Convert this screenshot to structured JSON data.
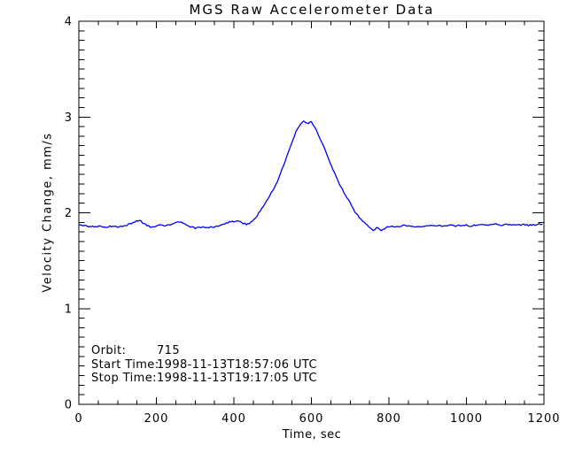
{
  "chart_data": {
    "type": "line",
    "title": "MGS Raw Accelerometer Data",
    "xlabel": "Time, sec",
    "ylabel": "Velocity Change, mm/s",
    "xlim": [
      0,
      1200
    ],
    "ylim": [
      0,
      4
    ],
    "x_major_ticks": [
      0,
      200,
      400,
      600,
      800,
      1000,
      1200
    ],
    "x_minor_step": 50,
    "y_major_ticks": [
      0,
      1,
      2,
      3,
      4
    ],
    "y_minor_step": 0.1,
    "grid": false,
    "legend": "none",
    "line_color": "#0000ff",
    "axis_color": "#000000",
    "background_color": "#ffffff",
    "noise_amplitude": 0.008,
    "noise_step_sec": 4,
    "series": [
      {
        "name": "velocity-change",
        "points": [
          [
            0,
            1.88
          ],
          [
            10,
            1.87
          ],
          [
            20,
            1.86
          ],
          [
            30,
            1.86
          ],
          [
            40,
            1.85
          ],
          [
            50,
            1.86
          ],
          [
            60,
            1.86
          ],
          [
            70,
            1.85
          ],
          [
            80,
            1.86
          ],
          [
            90,
            1.86
          ],
          [
            100,
            1.85
          ],
          [
            110,
            1.86
          ],
          [
            120,
            1.87
          ],
          [
            130,
            1.88
          ],
          [
            140,
            1.9
          ],
          [
            150,
            1.92
          ],
          [
            160,
            1.91
          ],
          [
            170,
            1.88
          ],
          [
            180,
            1.86
          ],
          [
            190,
            1.85
          ],
          [
            200,
            1.86
          ],
          [
            210,
            1.87
          ],
          [
            220,
            1.86
          ],
          [
            230,
            1.87
          ],
          [
            240,
            1.88
          ],
          [
            250,
            1.9
          ],
          [
            260,
            1.9
          ],
          [
            270,
            1.89
          ],
          [
            280,
            1.87
          ],
          [
            290,
            1.85
          ],
          [
            300,
            1.84
          ],
          [
            310,
            1.85
          ],
          [
            320,
            1.85
          ],
          [
            330,
            1.84
          ],
          [
            340,
            1.85
          ],
          [
            350,
            1.85
          ],
          [
            360,
            1.86
          ],
          [
            370,
            1.87
          ],
          [
            380,
            1.89
          ],
          [
            390,
            1.91
          ],
          [
            400,
            1.91
          ],
          [
            410,
            1.91
          ],
          [
            420,
            1.9
          ],
          [
            430,
            1.88
          ],
          [
            440,
            1.89
          ],
          [
            450,
            1.92
          ],
          [
            460,
            1.97
          ],
          [
            470,
            2.03
          ],
          [
            480,
            2.09
          ],
          [
            490,
            2.16
          ],
          [
            500,
            2.23
          ],
          [
            510,
            2.3
          ],
          [
            520,
            2.41
          ],
          [
            530,
            2.52
          ],
          [
            540,
            2.63
          ],
          [
            550,
            2.73
          ],
          [
            560,
            2.84
          ],
          [
            570,
            2.92
          ],
          [
            580,
            2.96
          ],
          [
            590,
            2.93
          ],
          [
            600,
            2.95
          ],
          [
            610,
            2.88
          ],
          [
            620,
            2.8
          ],
          [
            630,
            2.7
          ],
          [
            640,
            2.61
          ],
          [
            650,
            2.5
          ],
          [
            660,
            2.41
          ],
          [
            670,
            2.32
          ],
          [
            680,
            2.24
          ],
          [
            690,
            2.17
          ],
          [
            700,
            2.1
          ],
          [
            710,
            2.02
          ],
          [
            720,
            1.97
          ],
          [
            730,
            1.92
          ],
          [
            740,
            1.88
          ],
          [
            750,
            1.85
          ],
          [
            760,
            1.82
          ],
          [
            770,
            1.85
          ],
          [
            780,
            1.82
          ],
          [
            790,
            1.84
          ],
          [
            800,
            1.86
          ],
          [
            810,
            1.86
          ],
          [
            820,
            1.85
          ],
          [
            830,
            1.86
          ],
          [
            840,
            1.87
          ],
          [
            850,
            1.86
          ],
          [
            860,
            1.86
          ],
          [
            870,
            1.85
          ],
          [
            880,
            1.86
          ],
          [
            890,
            1.86
          ],
          [
            900,
            1.87
          ],
          [
            910,
            1.86
          ],
          [
            920,
            1.86
          ],
          [
            930,
            1.87
          ],
          [
            940,
            1.86
          ],
          [
            950,
            1.86
          ],
          [
            960,
            1.87
          ],
          [
            970,
            1.86
          ],
          [
            980,
            1.87
          ],
          [
            990,
            1.86
          ],
          [
            1000,
            1.87
          ],
          [
            1010,
            1.86
          ],
          [
            1020,
            1.87
          ],
          [
            1030,
            1.87
          ],
          [
            1040,
            1.88
          ],
          [
            1050,
            1.87
          ],
          [
            1060,
            1.87
          ],
          [
            1070,
            1.88
          ],
          [
            1080,
            1.88
          ],
          [
            1090,
            1.87
          ],
          [
            1100,
            1.88
          ],
          [
            1110,
            1.87
          ],
          [
            1120,
            1.87
          ],
          [
            1130,
            1.88
          ],
          [
            1140,
            1.87
          ],
          [
            1150,
            1.88
          ],
          [
            1160,
            1.87
          ],
          [
            1170,
            1.87
          ],
          [
            1180,
            1.88
          ],
          [
            1190,
            1.88
          ],
          [
            1195,
            1.88
          ]
        ]
      }
    ],
    "annotations": [
      {
        "label": "Orbit:",
        "value": "715"
      },
      {
        "label": "Start Time:",
        "value": "1998-11-13T18:57:06 UTC"
      },
      {
        "label": "Stop Time:",
        "value": "1998-11-13T19:17:05 UTC"
      }
    ]
  }
}
